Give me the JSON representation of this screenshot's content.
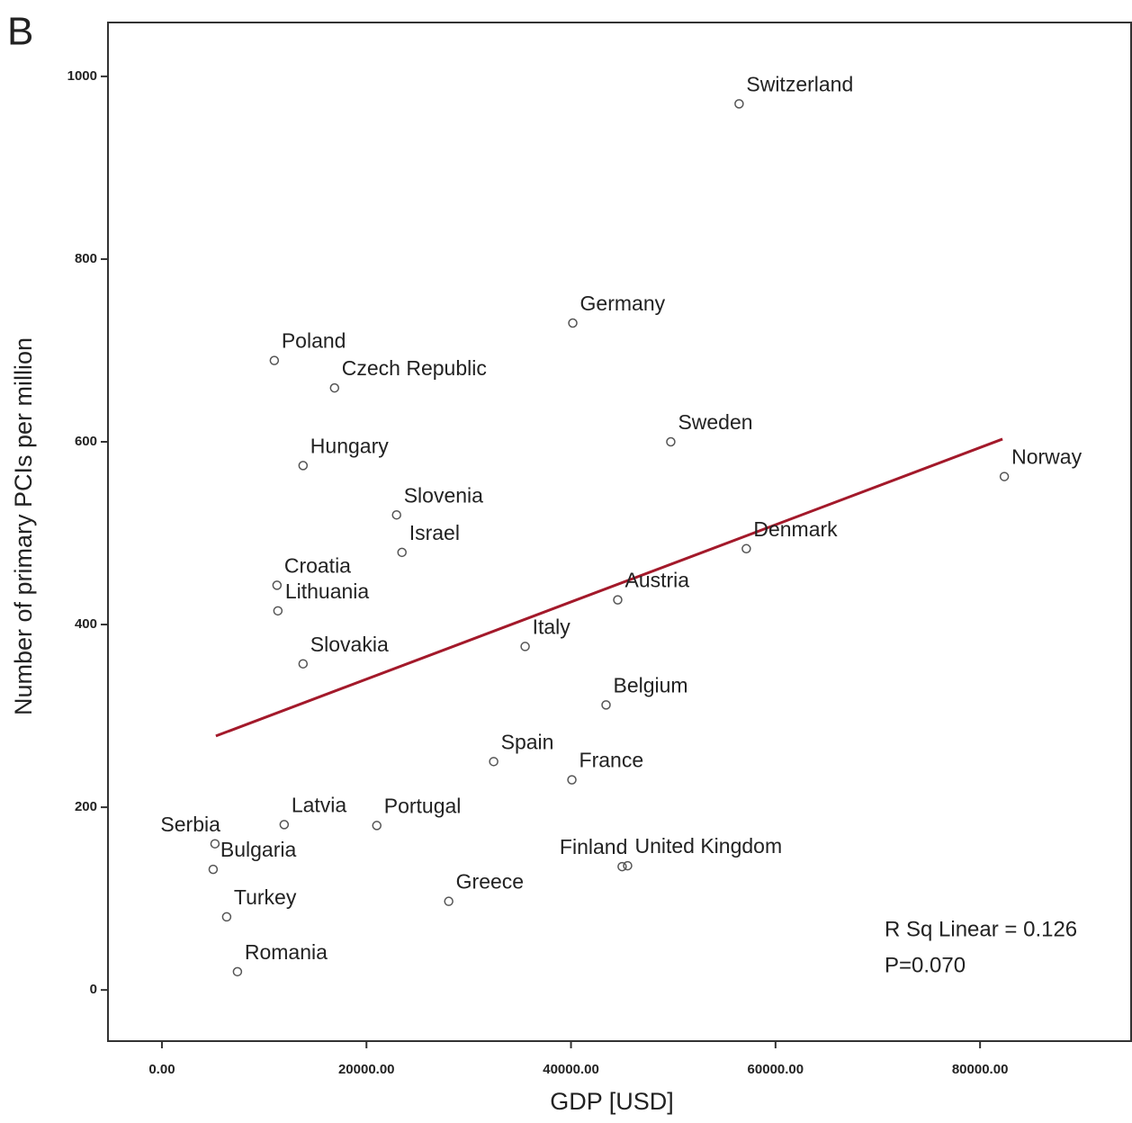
{
  "chart_data": {
    "type": "scatter",
    "panel_label": "B",
    "x_label": "GDP [USD]",
    "y_label": "Number of primary PCIs per million",
    "labels": [
      "Switzerland",
      "Germany",
      "Poland",
      "Czech Republic",
      "Sweden",
      "Hungary",
      "Norway",
      "Slovenia",
      "Israel",
      "Denmark",
      "Croatia",
      "Lithuania",
      "Austria",
      "Italy",
      "Slovakia",
      "Belgium",
      "Spain",
      "France",
      "Latvia",
      "Portugal",
      "Serbia",
      "Bulgaria",
      "Finland",
      "United Kingdom",
      "Greece",
      "Turkey",
      "Romania"
    ],
    "x": [
      56440,
      40176,
      10989,
      16879,
      49758,
      13802,
      82374,
      22945,
      23473,
      57143,
      11253,
      11341,
      44571,
      35516,
      13802,
      43429,
      32440,
      40088,
      11956,
      21011,
      5187,
      5011,
      45000,
      45538,
      28044,
      6330,
      7385
    ],
    "values": [
      970,
      730,
      689,
      659,
      600,
      574,
      562,
      520,
      479,
      483,
      443,
      415,
      427,
      376,
      357,
      312,
      250,
      230,
      181,
      180,
      160,
      132,
      135,
      136,
      97,
      80,
      20
    ],
    "color": "#555555",
    "trendline": {
      "x": [
        5275,
        82198
      ],
      "values": [
        278,
        603
      ],
      "color": "#a3192a"
    },
    "annotations": [
      "R Sq Linear = 0.126",
      "P=0.070"
    ],
    "xlim": [
      -5275,
      94770
    ],
    "ylim": [
      -56,
      1059
    ],
    "xticks": [
      {
        "value": 0,
        "label": "0.00"
      },
      {
        "value": 20000,
        "label": "20000.00"
      },
      {
        "value": 40000,
        "label": "40000.00"
      },
      {
        "value": 60000,
        "label": "60000.00"
      },
      {
        "value": 80000,
        "label": "80000.00"
      }
    ],
    "yticks": [
      0,
      200,
      400,
      600,
      800,
      1000
    ]
  }
}
